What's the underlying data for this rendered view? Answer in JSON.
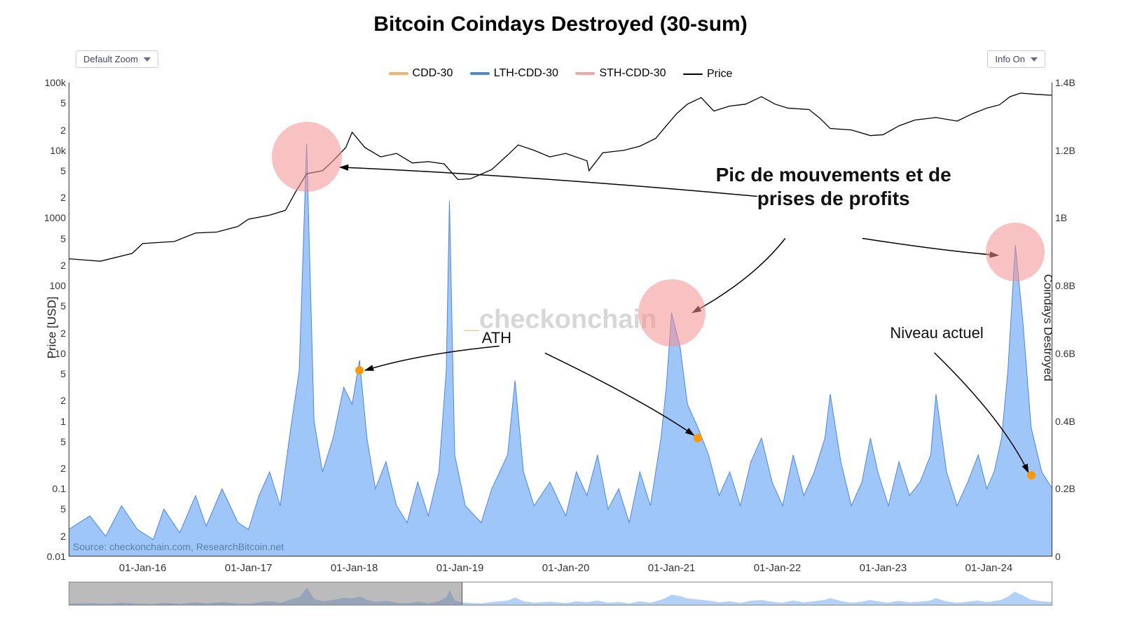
{
  "title": "Bitcoin Coindays Destroyed (30-sum)",
  "dropdowns": {
    "zoom": "Default Zoom",
    "info": "Info On"
  },
  "legend": [
    {
      "label": "CDD-30",
      "color": "#f6b26b"
    },
    {
      "label": "LTH-CDD-30",
      "color": "#4a86e8"
    },
    {
      "label": "STH-CDD-30",
      "color": "#f4a6a6"
    },
    {
      "label": "Price",
      "color": "#000000",
      "thin": true
    }
  ],
  "y_left": {
    "label": "Price [USD]",
    "scale": "log",
    "min": 0.01,
    "max": 100000,
    "ticks": [
      {
        "v": 100000,
        "l": "100k"
      },
      {
        "v": 50000,
        "l": "5"
      },
      {
        "v": 20000,
        "l": "2"
      },
      {
        "v": 10000,
        "l": "10k"
      },
      {
        "v": 5000,
        "l": "5"
      },
      {
        "v": 2000,
        "l": "2"
      },
      {
        "v": 1000,
        "l": "1000"
      },
      {
        "v": 500,
        "l": "5"
      },
      {
        "v": 200,
        "l": "2"
      },
      {
        "v": 100,
        "l": "100"
      },
      {
        "v": 50,
        "l": "5"
      },
      {
        "v": 20,
        "l": "2"
      },
      {
        "v": 10,
        "l": "10"
      },
      {
        "v": 5,
        "l": "5"
      },
      {
        "v": 2,
        "l": "2"
      },
      {
        "v": 1,
        "l": "1"
      },
      {
        "v": 0.5,
        "l": "5"
      },
      {
        "v": 0.2,
        "l": "2"
      },
      {
        "v": 0.1,
        "l": "0.1"
      },
      {
        "v": 0.05,
        "l": "5"
      },
      {
        "v": 0.02,
        "l": "2"
      },
      {
        "v": 0.01,
        "l": "0.01"
      }
    ]
  },
  "y_right": {
    "label": "Coindays Destroyed",
    "scale": "linear",
    "min": 0,
    "max": 1.4,
    "ticks": [
      {
        "v": 1.4,
        "l": "1.4B"
      },
      {
        "v": 1.2,
        "l": "1.2B"
      },
      {
        "v": 1.0,
        "l": "1B"
      },
      {
        "v": 0.8,
        "l": "0.8B"
      },
      {
        "v": 0.6,
        "l": "0.6B"
      },
      {
        "v": 0.4,
        "l": "0.4B"
      },
      {
        "v": 0.2,
        "l": "0.2B"
      },
      {
        "v": 0,
        "l": "0"
      }
    ]
  },
  "x_axis": {
    "min": 2015.3,
    "max": 2024.6,
    "ticks": [
      {
        "v": 2016,
        "l": "01-Jan-16"
      },
      {
        "v": 2017,
        "l": "01-Jan-17"
      },
      {
        "v": 2018,
        "l": "01-Jan-18"
      },
      {
        "v": 2019,
        "l": "01-Jan-19"
      },
      {
        "v": 2020,
        "l": "01-Jan-20"
      },
      {
        "v": 2021,
        "l": "01-Jan-21"
      },
      {
        "v": 2022,
        "l": "01-Jan-22"
      },
      {
        "v": 2023,
        "l": "01-Jan-23"
      },
      {
        "v": 2024,
        "l": "01-Jan-24"
      }
    ]
  },
  "colors": {
    "area_fill": "#7fb3f5",
    "area_stroke": "#4a86e8",
    "price_stroke": "#000000",
    "highlight": "#f4a6a6",
    "marker": "#ff9900",
    "background": "#ffffff"
  },
  "watermark": {
    "prefix": "_",
    "text": "checkonchain"
  },
  "source": "Source: checkonchain.com, ResearchBitcoin.net",
  "highlights": [
    {
      "t": 2017.55,
      "cdd": 1.18,
      "r": 50
    },
    {
      "t": 2021.0,
      "cdd": 0.72,
      "r": 48
    },
    {
      "t": 2024.25,
      "cdd": 0.9,
      "r": 42
    }
  ],
  "markers": [
    {
      "t": 2018.05,
      "cdd": 0.55
    },
    {
      "t": 2021.25,
      "cdd": 0.35
    },
    {
      "t": 2024.4,
      "cdd": 0.24
    }
  ],
  "annotations": {
    "main": {
      "line1": "Pic de mouvements et de",
      "line2": "prises de profits"
    },
    "ath": "ATH",
    "current": "Niveau actuel"
  },
  "price_series": [
    [
      2015.3,
      250
    ],
    [
      2015.6,
      230
    ],
    [
      2015.9,
      300
    ],
    [
      2016.0,
      420
    ],
    [
      2016.3,
      450
    ],
    [
      2016.5,
      600
    ],
    [
      2016.7,
      620
    ],
    [
      2016.9,
      750
    ],
    [
      2017.0,
      960
    ],
    [
      2017.2,
      1100
    ],
    [
      2017.35,
      1300
    ],
    [
      2017.45,
      2500
    ],
    [
      2017.55,
      4500
    ],
    [
      2017.7,
      5000
    ],
    [
      2017.8,
      7000
    ],
    [
      2017.92,
      11000
    ],
    [
      2017.98,
      18500
    ],
    [
      2018.1,
      11000
    ],
    [
      2018.25,
      8000
    ],
    [
      2018.4,
      9000
    ],
    [
      2018.55,
      6500
    ],
    [
      2018.7,
      6800
    ],
    [
      2018.85,
      6300
    ],
    [
      2018.98,
      3700
    ],
    [
      2019.1,
      3800
    ],
    [
      2019.3,
      5200
    ],
    [
      2019.45,
      8500
    ],
    [
      2019.55,
      12000
    ],
    [
      2019.7,
      10000
    ],
    [
      2019.85,
      8000
    ],
    [
      2020.0,
      9000
    ],
    [
      2020.2,
      7000
    ],
    [
      2020.22,
      5000
    ],
    [
      2020.35,
      9200
    ],
    [
      2020.55,
      10000
    ],
    [
      2020.7,
      11500
    ],
    [
      2020.85,
      15000
    ],
    [
      2020.95,
      23000
    ],
    [
      2021.05,
      35000
    ],
    [
      2021.15,
      48000
    ],
    [
      2021.28,
      60000
    ],
    [
      2021.4,
      38000
    ],
    [
      2021.55,
      45000
    ],
    [
      2021.7,
      48000
    ],
    [
      2021.85,
      62000
    ],
    [
      2021.98,
      48000
    ],
    [
      2022.1,
      42000
    ],
    [
      2022.3,
      40000
    ],
    [
      2022.4,
      30000
    ],
    [
      2022.5,
      21000
    ],
    [
      2022.7,
      20000
    ],
    [
      2022.88,
      16500
    ],
    [
      2023.0,
      17000
    ],
    [
      2023.15,
      23000
    ],
    [
      2023.3,
      28000
    ],
    [
      2023.5,
      30500
    ],
    [
      2023.7,
      27000
    ],
    [
      2023.85,
      35000
    ],
    [
      2023.98,
      42000
    ],
    [
      2024.1,
      47000
    ],
    [
      2024.2,
      62000
    ],
    [
      2024.3,
      70000
    ],
    [
      2024.45,
      67000
    ],
    [
      2024.6,
      65000
    ]
  ],
  "cdd_series": [
    [
      2015.3,
      0.08
    ],
    [
      2015.5,
      0.12
    ],
    [
      2015.65,
      0.06
    ],
    [
      2015.8,
      0.15
    ],
    [
      2015.95,
      0.08
    ],
    [
      2016.1,
      0.05
    ],
    [
      2016.2,
      0.14
    ],
    [
      2016.35,
      0.07
    ],
    [
      2016.5,
      0.18
    ],
    [
      2016.6,
      0.09
    ],
    [
      2016.75,
      0.2
    ],
    [
      2016.9,
      0.1
    ],
    [
      2017.0,
      0.08
    ],
    [
      2017.1,
      0.18
    ],
    [
      2017.2,
      0.25
    ],
    [
      2017.3,
      0.15
    ],
    [
      2017.4,
      0.38
    ],
    [
      2017.48,
      0.55
    ],
    [
      2017.55,
      1.22
    ],
    [
      2017.62,
      0.4
    ],
    [
      2017.7,
      0.25
    ],
    [
      2017.8,
      0.35
    ],
    [
      2017.9,
      0.5
    ],
    [
      2017.98,
      0.45
    ],
    [
      2018.05,
      0.58
    ],
    [
      2018.12,
      0.35
    ],
    [
      2018.2,
      0.2
    ],
    [
      2018.3,
      0.28
    ],
    [
      2018.4,
      0.15
    ],
    [
      2018.5,
      0.1
    ],
    [
      2018.6,
      0.22
    ],
    [
      2018.7,
      0.12
    ],
    [
      2018.8,
      0.25
    ],
    [
      2018.87,
      0.55
    ],
    [
      2018.9,
      1.05
    ],
    [
      2018.95,
      0.3
    ],
    [
      2019.05,
      0.15
    ],
    [
      2019.2,
      0.1
    ],
    [
      2019.3,
      0.2
    ],
    [
      2019.45,
      0.3
    ],
    [
      2019.52,
      0.52
    ],
    [
      2019.6,
      0.25
    ],
    [
      2019.7,
      0.15
    ],
    [
      2019.85,
      0.22
    ],
    [
      2020.0,
      0.12
    ],
    [
      2020.1,
      0.25
    ],
    [
      2020.2,
      0.18
    ],
    [
      2020.3,
      0.3
    ],
    [
      2020.4,
      0.14
    ],
    [
      2020.5,
      0.2
    ],
    [
      2020.6,
      0.1
    ],
    [
      2020.7,
      0.25
    ],
    [
      2020.8,
      0.15
    ],
    [
      2020.9,
      0.35
    ],
    [
      2020.95,
      0.5
    ],
    [
      2021.0,
      0.72
    ],
    [
      2021.08,
      0.62
    ],
    [
      2021.15,
      0.45
    ],
    [
      2021.25,
      0.38
    ],
    [
      2021.35,
      0.3
    ],
    [
      2021.45,
      0.18
    ],
    [
      2021.55,
      0.25
    ],
    [
      2021.65,
      0.15
    ],
    [
      2021.75,
      0.28
    ],
    [
      2021.85,
      0.35
    ],
    [
      2021.95,
      0.22
    ],
    [
      2022.05,
      0.15
    ],
    [
      2022.15,
      0.3
    ],
    [
      2022.25,
      0.18
    ],
    [
      2022.35,
      0.25
    ],
    [
      2022.45,
      0.35
    ],
    [
      2022.5,
      0.48
    ],
    [
      2022.6,
      0.28
    ],
    [
      2022.7,
      0.15
    ],
    [
      2022.8,
      0.22
    ],
    [
      2022.88,
      0.35
    ],
    [
      2022.95,
      0.25
    ],
    [
      2023.05,
      0.15
    ],
    [
      2023.15,
      0.28
    ],
    [
      2023.25,
      0.18
    ],
    [
      2023.35,
      0.22
    ],
    [
      2023.45,
      0.3
    ],
    [
      2023.5,
      0.48
    ],
    [
      2023.6,
      0.25
    ],
    [
      2023.7,
      0.15
    ],
    [
      2023.8,
      0.22
    ],
    [
      2023.9,
      0.3
    ],
    [
      2023.98,
      0.2
    ],
    [
      2024.05,
      0.25
    ],
    [
      2024.12,
      0.35
    ],
    [
      2024.18,
      0.55
    ],
    [
      2024.25,
      0.92
    ],
    [
      2024.32,
      0.7
    ],
    [
      2024.4,
      0.38
    ],
    [
      2024.5,
      0.25
    ],
    [
      2024.6,
      0.2
    ]
  ]
}
